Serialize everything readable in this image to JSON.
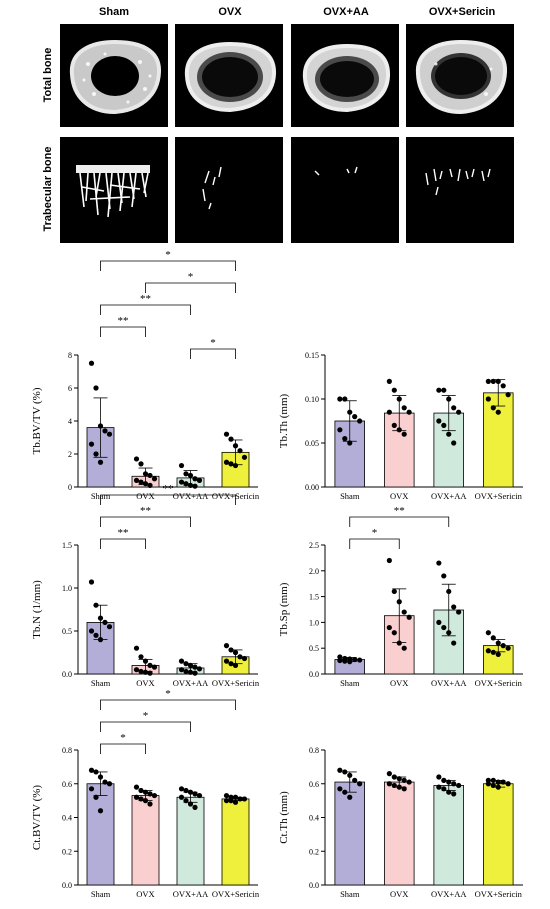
{
  "micro_ct": {
    "groups": [
      "Sham",
      "OVX",
      "OVX+AA",
      "OVX+Sericin"
    ],
    "rows": [
      "Total bone",
      "Trabecular bone"
    ]
  },
  "colors": {
    "Sham": "#b3aed8",
    "OVX": "#f9cfcf",
    "OVX+AA": "#cfe9dc",
    "OVX+Sericin": "#eef03c"
  },
  "chart_data": [
    {
      "type": "bar",
      "categories": [
        "Sham",
        "OVX",
        "OVX+AA",
        "OVX+Sericin"
      ],
      "ylabel": "Tb.BV/TV (%)",
      "ylim": [
        0,
        8
      ],
      "yticks": [
        0,
        2,
        4,
        6,
        8
      ],
      "values": [
        3.6,
        0.65,
        0.55,
        2.1
      ],
      "errors": [
        1.8,
        0.5,
        0.45,
        0.75
      ],
      "points": [
        [
          7.5,
          6.0,
          3.7,
          3.4,
          3.2,
          2.6,
          2.0,
          1.5
        ],
        [
          1.7,
          1.4,
          0.8,
          0.7,
          0.5,
          0.4,
          0.3,
          0.2,
          0.1
        ],
        [
          1.3,
          0.8,
          0.7,
          0.5,
          0.4,
          0.3,
          0.2,
          0.1,
          0.05
        ],
        [
          3.2,
          2.9,
          2.5,
          2.2,
          1.8,
          1.5,
          1.4,
          1.3
        ]
      ],
      "significance": [
        {
          "from": 0,
          "to": 3,
          "label": "*"
        },
        {
          "from": 1,
          "to": 3,
          "label": "*"
        },
        {
          "from": 0,
          "to": 2,
          "label": "**"
        },
        {
          "from": 0,
          "to": 1,
          "label": "**"
        },
        {
          "from": 2,
          "to": 3,
          "label": "*"
        }
      ]
    },
    {
      "type": "bar",
      "categories": [
        "Sham",
        "OVX",
        "OVX+AA",
        "OVX+Sericin"
      ],
      "ylabel": "Tb.Th (mm)",
      "ylim": [
        0,
        0.15
      ],
      "yticks": [
        0.0,
        0.05,
        0.1,
        0.15
      ],
      "tick_decimals": 2,
      "values": [
        0.075,
        0.084,
        0.084,
        0.107
      ],
      "errors": [
        0.023,
        0.02,
        0.02,
        0.015
      ],
      "points": [
        [
          0.1,
          0.1,
          0.085,
          0.08,
          0.075,
          0.065,
          0.055,
          0.05
        ],
        [
          0.12,
          0.11,
          0.1,
          0.09,
          0.085,
          0.085,
          0.07,
          0.065,
          0.06
        ],
        [
          0.11,
          0.11,
          0.1,
          0.09,
          0.085,
          0.075,
          0.07,
          0.06,
          0.05
        ],
        [
          0.12,
          0.12,
          0.12,
          0.115,
          0.105,
          0.1,
          0.09,
          0.085
        ]
      ],
      "significance": []
    },
    {
      "type": "bar",
      "categories": [
        "Sham",
        "OVX",
        "OVX+AA",
        "OVX+Sericin"
      ],
      "ylabel": "Tb.N (1/mm)",
      "ylim": [
        0,
        1.5
      ],
      "yticks": [
        0.0,
        0.5,
        1.0,
        1.5
      ],
      "tick_decimals": 1,
      "values": [
        0.6,
        0.1,
        0.07,
        0.2
      ],
      "errors": [
        0.2,
        0.07,
        0.05,
        0.08
      ],
      "points": [
        [
          1.07,
          0.8,
          0.65,
          0.6,
          0.55,
          0.5,
          0.45,
          0.4
        ],
        [
          0.3,
          0.2,
          0.15,
          0.1,
          0.08,
          0.05,
          0.03,
          0.02,
          0.01
        ],
        [
          0.15,
          0.12,
          0.1,
          0.08,
          0.06,
          0.05,
          0.03,
          0.02,
          0.01
        ],
        [
          0.33,
          0.28,
          0.25,
          0.2,
          0.18,
          0.15,
          0.12,
          0.1
        ]
      ],
      "significance": [
        {
          "from": 0,
          "to": 3,
          "label": "**"
        },
        {
          "from": 0,
          "to": 2,
          "label": "**"
        },
        {
          "from": 0,
          "to": 1,
          "label": "**"
        }
      ]
    },
    {
      "type": "bar",
      "categories": [
        "Sham",
        "OVX",
        "OVX+AA",
        "OVX+Sericin"
      ],
      "ylabel": "Tb.Sp (mm)",
      "ylim": [
        0,
        2.5
      ],
      "yticks": [
        0.0,
        0.5,
        1.0,
        1.5,
        2.0,
        2.5
      ],
      "tick_decimals": 1,
      "values": [
        0.28,
        1.13,
        1.24,
        0.55
      ],
      "errors": [
        0.04,
        0.52,
        0.5,
        0.12
      ],
      "points": [
        [
          0.33,
          0.3,
          0.29,
          0.28,
          0.27,
          0.26,
          0.25,
          0.24
        ],
        [
          2.2,
          1.6,
          1.4,
          1.2,
          1.1,
          0.9,
          0.8,
          0.6,
          0.5
        ],
        [
          2.15,
          1.9,
          1.6,
          1.3,
          1.2,
          1.0,
          0.9,
          0.8,
          0.6
        ],
        [
          0.8,
          0.7,
          0.6,
          0.55,
          0.5,
          0.45,
          0.42,
          0.38
        ]
      ],
      "significance": [
        {
          "from": 0,
          "to": 2,
          "label": "**"
        },
        {
          "from": 0,
          "to": 1,
          "label": "*"
        }
      ]
    },
    {
      "type": "bar",
      "categories": [
        "Sham",
        "OVX",
        "OVX+AA",
        "OVX+Sericin"
      ],
      "ylabel": "Ct.BV/TV (%)",
      "ylim": [
        0,
        0.8
      ],
      "yticks": [
        0.0,
        0.2,
        0.4,
        0.6,
        0.8
      ],
      "tick_decimals": 1,
      "values": [
        0.6,
        0.53,
        0.52,
        0.51
      ],
      "errors": [
        0.07,
        0.03,
        0.03,
        0.01
      ],
      "points": [
        [
          0.68,
          0.67,
          0.64,
          0.61,
          0.6,
          0.57,
          0.52,
          0.44
        ],
        [
          0.58,
          0.56,
          0.55,
          0.54,
          0.53,
          0.52,
          0.51,
          0.5,
          0.48
        ],
        [
          0.57,
          0.56,
          0.55,
          0.54,
          0.53,
          0.52,
          0.5,
          0.48,
          0.46
        ],
        [
          0.53,
          0.52,
          0.52,
          0.51,
          0.51,
          0.5,
          0.5,
          0.49
        ]
      ],
      "significance": [
        {
          "from": 0,
          "to": 3,
          "label": "*"
        },
        {
          "from": 0,
          "to": 2,
          "label": "*"
        },
        {
          "from": 0,
          "to": 1,
          "label": "*"
        }
      ]
    },
    {
      "type": "bar",
      "categories": [
        "Sham",
        "OVX",
        "OVX+AA",
        "OVX+Sericin"
      ],
      "ylabel": "Ct.Th (mm)",
      "ylim": [
        0,
        0.8
      ],
      "yticks": [
        0.0,
        0.2,
        0.4,
        0.6,
        0.8
      ],
      "tick_decimals": 1,
      "values": [
        0.61,
        0.61,
        0.59,
        0.6
      ],
      "errors": [
        0.06,
        0.03,
        0.03,
        0.02
      ],
      "points": [
        [
          0.68,
          0.67,
          0.65,
          0.62,
          0.6,
          0.57,
          0.55,
          0.52
        ],
        [
          0.66,
          0.64,
          0.63,
          0.62,
          0.61,
          0.6,
          0.59,
          0.58,
          0.57
        ],
        [
          0.64,
          0.62,
          0.61,
          0.6,
          0.59,
          0.58,
          0.57,
          0.55,
          0.54
        ],
        [
          0.62,
          0.62,
          0.61,
          0.61,
          0.6,
          0.6,
          0.59,
          0.58
        ]
      ],
      "significance": []
    }
  ]
}
